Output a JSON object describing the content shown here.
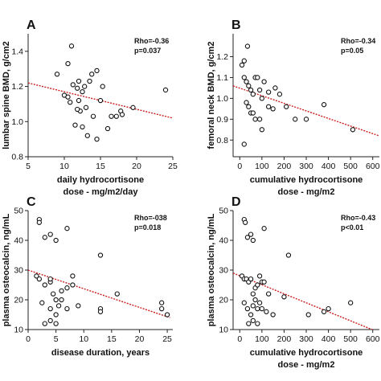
{
  "chart_data": [
    {
      "type": "scatter",
      "panel": "A",
      "xlabel": [
        "daily hydrocortisone",
        "dose - mg/m2/day"
      ],
      "ylabel": "lumbar spine BMD, g/cm2",
      "xlim": [
        5,
        25
      ],
      "ylim": [
        0.8,
        1.5
      ],
      "xticks": [
        5,
        10,
        15,
        20,
        25
      ],
      "yticks": [
        0.8,
        1.0,
        1.2,
        1.4
      ],
      "xtick_labels": [
        "5",
        "10",
        "15",
        "20",
        "25"
      ],
      "ytick_labels": [
        "0.8",
        "1.0",
        "1.2",
        "1.4"
      ],
      "stats": [
        "Rho=-0.36",
        "p=0.037"
      ],
      "trend": {
        "x": [
          5,
          25
        ],
        "y": [
          1.22,
          1.02
        ]
      },
      "points": [
        [
          9,
          1.27
        ],
        [
          10.5,
          1.33
        ],
        [
          11,
          1.43
        ],
        [
          10,
          1.15
        ],
        [
          10.5,
          1.14
        ],
        [
          10.8,
          1.11
        ],
        [
          11.8,
          1.19
        ],
        [
          11.2,
          1.21
        ],
        [
          12,
          1.23
        ],
        [
          12.5,
          1.17
        ],
        [
          12.8,
          1.2
        ],
        [
          13.5,
          1.23
        ],
        [
          13.8,
          1.27
        ],
        [
          14.5,
          1.29
        ],
        [
          15.3,
          1.2
        ],
        [
          12.2,
          1.06
        ],
        [
          11.5,
          0.98
        ],
        [
          11.8,
          1.07
        ],
        [
          12.5,
          0.97
        ],
        [
          13.2,
          0.92
        ],
        [
          14,
          1.03
        ],
        [
          14.5,
          0.9
        ],
        [
          15,
          1.12
        ],
        [
          16,
          0.96
        ],
        [
          16.5,
          1.03
        ],
        [
          17.2,
          1.03
        ],
        [
          17.8,
          1.06
        ],
        [
          18,
          1.04
        ],
        [
          19.5,
          1.08
        ],
        [
          24,
          1.18
        ],
        [
          13,
          1.08
        ],
        [
          12,
          1.12
        ]
      ]
    },
    {
      "type": "scatter",
      "panel": "B",
      "xlabel": [
        "cumulative hydrocortisone",
        "dose - mg/m2"
      ],
      "ylabel": "femoral neck BMD, g/cm2",
      "xlim": [
        -30,
        630
      ],
      "ylim": [
        0.72,
        1.31
      ],
      "xticks": [
        0,
        100,
        200,
        300,
        400,
        500,
        600
      ],
      "yticks": [
        0.8,
        0.9,
        1.0,
        1.1,
        1.2
      ],
      "xtick_labels": [
        "0",
        "100",
        "200",
        "300",
        "400",
        "500",
        "600"
      ],
      "ytick_labels": [
        "0.8",
        "0.9",
        "1.0",
        "1.1",
        "1.2"
      ],
      "stats": [
        "Rho=-0.34",
        "p=0.05"
      ],
      "trend": {
        "x": [
          -30,
          630
        ],
        "y": [
          1.06,
          0.82
        ]
      },
      "points": [
        [
          10,
          1.16
        ],
        [
          20,
          1.18
        ],
        [
          35,
          1.25
        ],
        [
          20,
          1.1
        ],
        [
          30,
          1.08
        ],
        [
          40,
          1.06
        ],
        [
          50,
          1.04
        ],
        [
          60,
          1.02
        ],
        [
          70,
          1.1
        ],
        [
          80,
          1.1
        ],
        [
          90,
          1.04
        ],
        [
          110,
          1.08
        ],
        [
          130,
          1.03
        ],
        [
          160,
          1.05
        ],
        [
          180,
          1.02
        ],
        [
          100,
          1.0
        ],
        [
          30,
          0.98
        ],
        [
          40,
          0.96
        ],
        [
          50,
          0.93
        ],
        [
          60,
          0.93
        ],
        [
          70,
          0.9
        ],
        [
          90,
          0.9
        ],
        [
          100,
          0.85
        ],
        [
          130,
          0.96
        ],
        [
          150,
          0.95
        ],
        [
          210,
          0.96
        ],
        [
          250,
          0.9
        ],
        [
          300,
          0.9
        ],
        [
          380,
          0.97
        ],
        [
          510,
          0.85
        ],
        [
          20,
          0.78
        ]
      ]
    },
    {
      "type": "scatter",
      "panel": "C",
      "xlabel": [
        "disease duration, years"
      ],
      "ylabel": "plasma osteocalcin, ng/mL",
      "xlim": [
        0,
        26
      ],
      "ylim": [
        10,
        50
      ],
      "xticks": [
        0,
        5,
        10,
        15,
        20,
        25
      ],
      "yticks": [
        10,
        20,
        30,
        40,
        50
      ],
      "xtick_labels": [
        "0",
        "5",
        "10",
        "15",
        "20",
        "25"
      ],
      "ytick_labels": [
        "10",
        "20",
        "30",
        "40",
        "50"
      ],
      "stats": [
        "Rho=-038",
        "p=0.018"
      ],
      "trend": {
        "x": [
          0,
          25.5
        ],
        "y": [
          30,
          14
        ]
      },
      "points": [
        [
          2,
          47
        ],
        [
          2,
          46
        ],
        [
          3,
          41
        ],
        [
          4,
          42
        ],
        [
          5,
          40
        ],
        [
          7,
          44
        ],
        [
          4,
          26
        ],
        [
          4,
          27
        ],
        [
          2,
          27
        ],
        [
          1.5,
          28
        ],
        [
          3,
          25
        ],
        [
          4.5,
          22
        ],
        [
          5,
          20
        ],
        [
          6,
          23
        ],
        [
          7,
          24
        ],
        [
          8,
          25
        ],
        [
          8,
          28
        ],
        [
          2.5,
          19
        ],
        [
          4,
          17
        ],
        [
          5,
          15
        ],
        [
          5.5,
          18
        ],
        [
          6,
          20
        ],
        [
          7,
          17
        ],
        [
          9,
          18
        ],
        [
          4,
          13
        ],
        [
          5,
          12
        ],
        [
          3,
          12
        ],
        [
          13,
          17
        ],
        [
          13,
          16
        ],
        [
          13,
          35
        ],
        [
          16,
          22
        ],
        [
          24,
          19
        ],
        [
          24,
          17
        ],
        [
          25,
          15
        ]
      ]
    },
    {
      "type": "scatter",
      "panel": "D",
      "xlabel": [
        "cumulative hydrocortisone",
        "dose - mg/m2"
      ],
      "ylabel": "plasma osteocalcin, ng/mL",
      "xlim": [
        -30,
        630
      ],
      "ylim": [
        10,
        50
      ],
      "xticks": [
        0,
        100,
        200,
        300,
        400,
        500,
        600
      ],
      "yticks": [
        10,
        20,
        30,
        40,
        50
      ],
      "xtick_labels": [
        "0",
        "100",
        "200",
        "300",
        "400",
        "500",
        "600"
      ],
      "ytick_labels": [
        "10",
        "20",
        "30",
        "40",
        "50"
      ],
      "stats": [
        "Rho=-0.43",
        "p<0.01"
      ],
      "trend": {
        "x": [
          -30,
          630
        ],
        "y": [
          29,
          9
        ]
      },
      "points": [
        [
          20,
          47
        ],
        [
          25,
          46
        ],
        [
          35,
          41
        ],
        [
          50,
          42
        ],
        [
          60,
          40
        ],
        [
          110,
          44
        ],
        [
          10,
          28
        ],
        [
          20,
          27
        ],
        [
          30,
          27
        ],
        [
          40,
          26
        ],
        [
          50,
          27
        ],
        [
          60,
          22
        ],
        [
          70,
          24
        ],
        [
          80,
          25
        ],
        [
          90,
          28
        ],
        [
          100,
          26
        ],
        [
          110,
          26
        ],
        [
          130,
          22
        ],
        [
          200,
          21
        ],
        [
          220,
          35
        ],
        [
          20,
          19
        ],
        [
          35,
          17
        ],
        [
          50,
          15
        ],
        [
          60,
          18
        ],
        [
          70,
          20
        ],
        [
          80,
          17
        ],
        [
          90,
          19
        ],
        [
          100,
          17
        ],
        [
          120,
          16
        ],
        [
          150,
          15
        ],
        [
          60,
          13
        ],
        [
          80,
          12
        ],
        [
          40,
          12
        ],
        [
          310,
          15
        ],
        [
          380,
          16
        ],
        [
          400,
          17
        ],
        [
          500,
          19
        ]
      ]
    }
  ]
}
